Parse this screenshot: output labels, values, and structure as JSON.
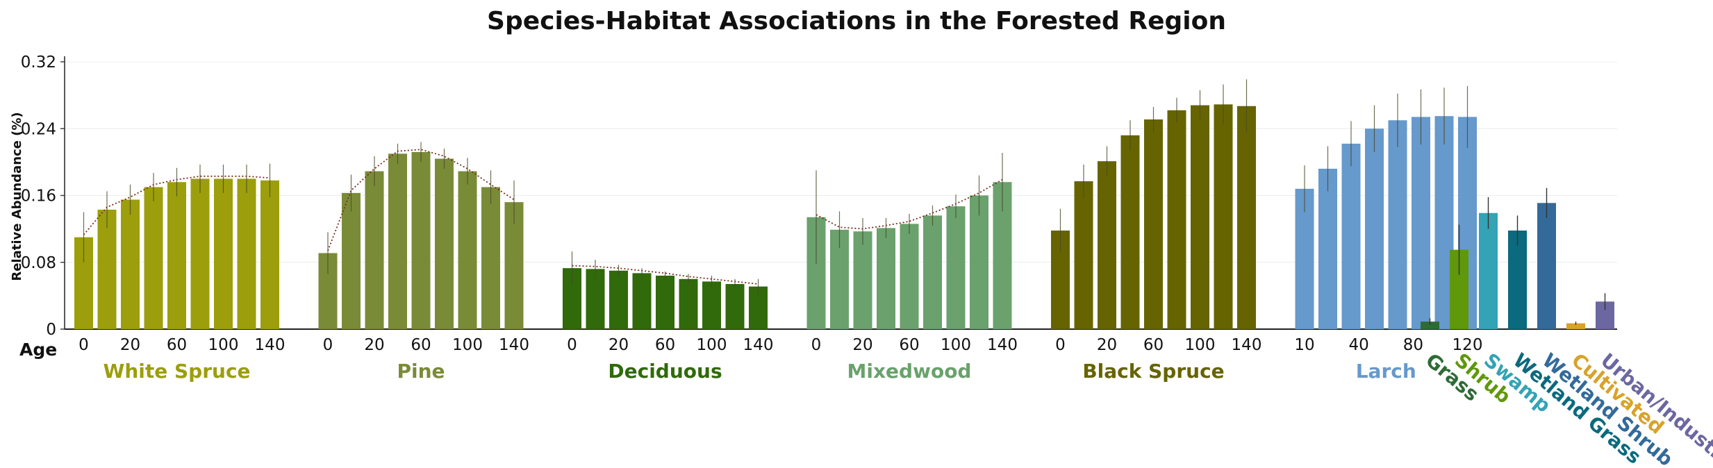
{
  "chart_data": {
    "type": "bar",
    "title": "Species-Habitat Associations in the Forested Region",
    "ylabel": "Relative Abundance (%)",
    "xlabel": "Age",
    "ylim": [
      0,
      0.32
    ],
    "yticks": [
      "0",
      "0.08",
      "0.16",
      "0.24",
      "0.32"
    ],
    "grid": true,
    "groups": [
      {
        "name": "White Spruce",
        "color": "#9c9e0c",
        "trend": true,
        "ticks": [
          "0",
          "20",
          "60",
          "100",
          "140"
        ],
        "values": [
          0.11,
          0.143,
          0.155,
          0.17,
          0.176,
          0.18,
          0.18,
          0.18,
          0.178
        ],
        "errors": [
          0.03,
          0.022,
          0.018,
          0.017,
          0.017,
          0.017,
          0.017,
          0.017,
          0.02
        ]
      },
      {
        "name": "Pine",
        "color": "#7a8b37",
        "trend": true,
        "ticks": [
          "0",
          "20",
          "60",
          "100",
          "140"
        ],
        "values": [
          0.091,
          0.163,
          0.189,
          0.21,
          0.212,
          0.204,
          0.189,
          0.17,
          0.152
        ],
        "errors": [
          0.025,
          0.022,
          0.018,
          0.012,
          0.012,
          0.012,
          0.016,
          0.02,
          0.026
        ]
      },
      {
        "name": "Deciduous",
        "color": "#306a0a",
        "trend": true,
        "ticks": [
          "0",
          "20",
          "60",
          "100",
          "140"
        ],
        "values": [
          0.073,
          0.072,
          0.07,
          0.067,
          0.064,
          0.06,
          0.057,
          0.054,
          0.051
        ],
        "errors": [
          0.02,
          0.011,
          0.007,
          0.006,
          0.005,
          0.006,
          0.007,
          0.006,
          0.009
        ]
      },
      {
        "name": "Mixedwood",
        "color": "#6aa16c",
        "trend": true,
        "ticks": [
          "0",
          "20",
          "60",
          "100",
          "140"
        ],
        "values": [
          0.134,
          0.119,
          0.117,
          0.121,
          0.126,
          0.136,
          0.147,
          0.16,
          0.176
        ],
        "errors": [
          0.056,
          0.022,
          0.016,
          0.012,
          0.012,
          0.012,
          0.014,
          0.024,
          0.035
        ]
      },
      {
        "name": "Black Spruce",
        "color": "#666400",
        "trend": false,
        "ticks": [
          "0",
          "20",
          "60",
          "100",
          "140"
        ],
        "values": [
          0.118,
          0.177,
          0.201,
          0.232,
          0.251,
          0.262,
          0.268,
          0.269,
          0.267
        ],
        "errors": [
          0.026,
          0.02,
          0.018,
          0.018,
          0.015,
          0.015,
          0.018,
          0.024,
          0.032
        ]
      },
      {
        "name": "Larch",
        "color": "#6699cc",
        "trend": false,
        "ticks": [
          "10",
          "40",
          "80",
          "120"
        ],
        "values": [
          0.168,
          0.192,
          0.222,
          0.24,
          0.25,
          0.254,
          0.255,
          0.254
        ],
        "errors": [
          0.028,
          0.027,
          0.027,
          0.028,
          0.032,
          0.033,
          0.034,
          0.037
        ]
      }
    ],
    "singles": [
      {
        "name": "Grass",
        "value": 0.009,
        "error": 0.004,
        "color": "#2e6b35"
      },
      {
        "name": "Shrub",
        "value": 0.095,
        "error": 0.03,
        "color": "#5f980b"
      },
      {
        "name": "Swamp",
        "value": 0.139,
        "error": 0.019,
        "color": "#34a3b5"
      },
      {
        "name": "Wetland Grass",
        "value": 0.118,
        "error": 0.018,
        "color": "#0b6a7d"
      },
      {
        "name": "Wetland Shrub",
        "value": 0.151,
        "error": 0.018,
        "color": "#336a9a"
      },
      {
        "name": "Cultivated",
        "value": 0.007,
        "error": 0.002,
        "color": "#d8a32b"
      },
      {
        "name": "Urban/Industry",
        "value": 0.033,
        "error": 0.01,
        "color": "#6b67a1"
      }
    ]
  }
}
